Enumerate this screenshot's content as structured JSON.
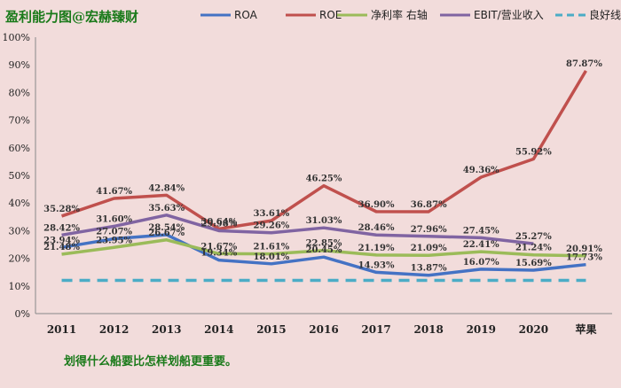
{
  "chart_data": {
    "type": "line",
    "title": "盈利能力图@宏赫臻财",
    "categories": [
      "2011",
      "2012",
      "2013",
      "2014",
      "2015",
      "2016",
      "2017",
      "2018",
      "2019",
      "2020",
      "苹果"
    ],
    "ylim": [
      0,
      100
    ],
    "y_ticks": [
      "0%",
      "10%",
      "20%",
      "30%",
      "40%",
      "50%",
      "60%",
      "70%",
      "80%",
      "90%",
      "100%"
    ],
    "grid": false,
    "legend": "top",
    "series": [
      {
        "name": "ROA",
        "color": "#4472c4",
        "style": "solid",
        "values": [
          23.94,
          27.07,
          28.54,
          19.34,
          18.01,
          20.45,
          14.93,
          13.87,
          16.07,
          15.69,
          17.73
        ],
        "labels": [
          "23.94%",
          "27.07%",
          "28.54%",
          "19.34%",
          "18.01%",
          "20.45%",
          "14.93%",
          "13.87%",
          "16.07%",
          "15.69%",
          "17.73%"
        ]
      },
      {
        "name": "ROE",
        "color": "#c0504d",
        "style": "solid",
        "values": [
          35.28,
          41.67,
          42.84,
          30.64,
          33.61,
          46.25,
          36.9,
          36.87,
          49.36,
          55.92,
          87.87
        ],
        "labels": [
          "35.28%",
          "41.67%",
          "42.84%",
          "30.64%",
          "33.61%",
          "46.25%",
          "36.90%",
          "36.87%",
          "49.36%",
          "55.92%",
          "87.87%"
        ]
      },
      {
        "name": "净利率 右轴",
        "color": "#9bbb59",
        "style": "solid",
        "values": [
          21.48,
          23.95,
          26.67,
          21.67,
          21.61,
          22.85,
          21.19,
          21.09,
          22.41,
          21.24,
          20.91
        ],
        "labels": [
          "21.48%",
          "23.95%",
          "26.67%",
          "21.67%",
          "21.61%",
          "22.85%",
          "21.19%",
          "21.09%",
          "22.41%",
          "21.24%",
          "20.91%"
        ]
      },
      {
        "name": "EBIT/营业收入",
        "color": "#8064a2",
        "style": "solid",
        "values": [
          28.42,
          31.6,
          35.63,
          29.98,
          29.26,
          31.03,
          28.46,
          27.96,
          27.45,
          25.27,
          null
        ],
        "labels": [
          "28.42%",
          "31.60%",
          "35.63%",
          "29.98%",
          "29.26%",
          "31.03%",
          "28.46%",
          "27.96%",
          "27.45%",
          "25.27%",
          ""
        ]
      },
      {
        "name": "良好线",
        "color": "#4bacc6",
        "style": "dashed",
        "values": [
          12,
          12,
          12,
          12,
          12,
          12,
          12,
          12,
          12,
          12,
          12
        ],
        "labels": [
          "",
          "",
          "",
          "",
          "",
          "",
          "",
          "",
          "",
          "",
          ""
        ]
      }
    ],
    "caption": "划得什么船要比怎样划船更重要。"
  }
}
